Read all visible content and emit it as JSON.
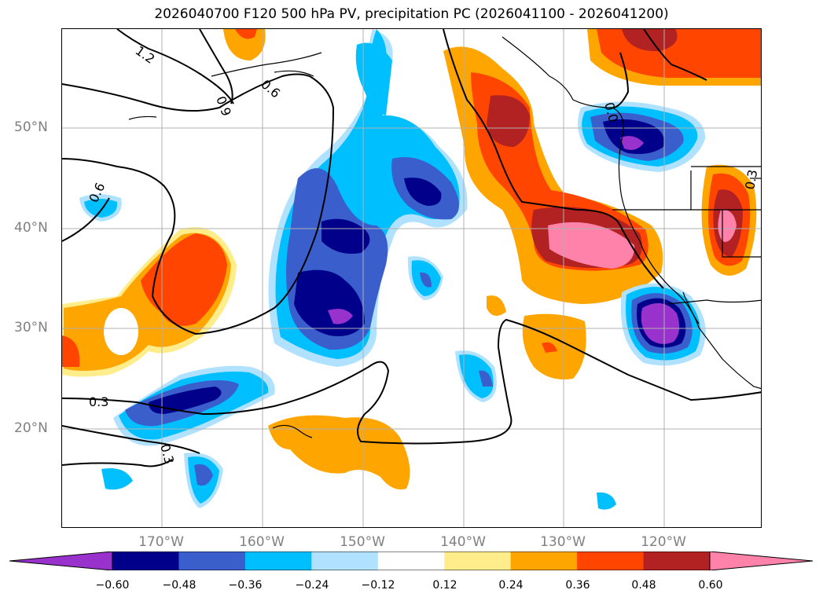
{
  "title": "2026040700 F120 500 hPa PV, precipitation PC (2026041100 - 2026041200)",
  "axes": {
    "lat_labels": [
      "50°N",
      "40°N",
      "30°N",
      "20°N"
    ],
    "lon_labels": [
      "170°W",
      "160°W",
      "150°W",
      "140°W",
      "130°W",
      "120°W"
    ]
  },
  "contour_labels": [
    "1.2",
    "0.9",
    "0.6",
    "0.6",
    "0.3",
    "0.3",
    "0.3",
    "0.0"
  ],
  "colorbar": {
    "ticks": [
      "−0.60",
      "−0.48",
      "−0.36",
      "−0.24",
      "−0.12",
      "0.12",
      "0.24",
      "0.36",
      "0.48",
      "0.60"
    ],
    "colors": [
      "#9932cc",
      "#00008b",
      "#3a5fcd",
      "#00bfff",
      "#b0e2ff",
      "#ffffff",
      "#ffec8b",
      "#ffa500",
      "#ff4500",
      "#b22222",
      "#ff82ab"
    ]
  }
}
